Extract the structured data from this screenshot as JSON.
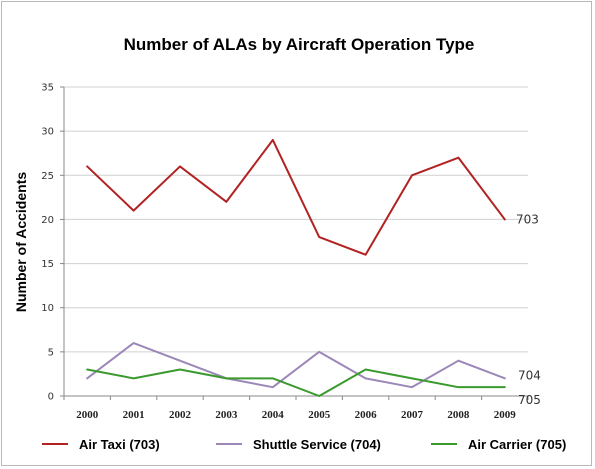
{
  "chart_data": {
    "type": "line",
    "title": "Number of ALAs by Aircraft Operation Type",
    "ylabel": "Number of Accidents",
    "xlabel": "",
    "ylim": [
      0,
      35
    ],
    "yticks": [
      0,
      5,
      10,
      15,
      20,
      25,
      30,
      35
    ],
    "categories": [
      "2000",
      "2001",
      "2002",
      "2003",
      "2004",
      "2005",
      "2006",
      "2007",
      "2008",
      "2009"
    ],
    "grid": "horizontal",
    "legend_position": "bottom",
    "series": [
      {
        "name": "Air Taxi (703)",
        "end_label": "703",
        "color": "#b22222",
        "values": [
          26,
          21,
          26,
          22,
          29,
          18,
          16,
          25,
          27,
          20
        ]
      },
      {
        "name": "Shuttle Service (704)",
        "end_label": "704",
        "color": "#9b87b8",
        "values": [
          2,
          6,
          4,
          2,
          1,
          5,
          2,
          1,
          4,
          2
        ]
      },
      {
        "name": "Air Carrier (705)",
        "end_label": "705",
        "color": "#3a9a2e",
        "values": [
          3,
          2,
          3,
          2,
          2,
          0,
          3,
          2,
          1,
          1
        ]
      }
    ]
  }
}
